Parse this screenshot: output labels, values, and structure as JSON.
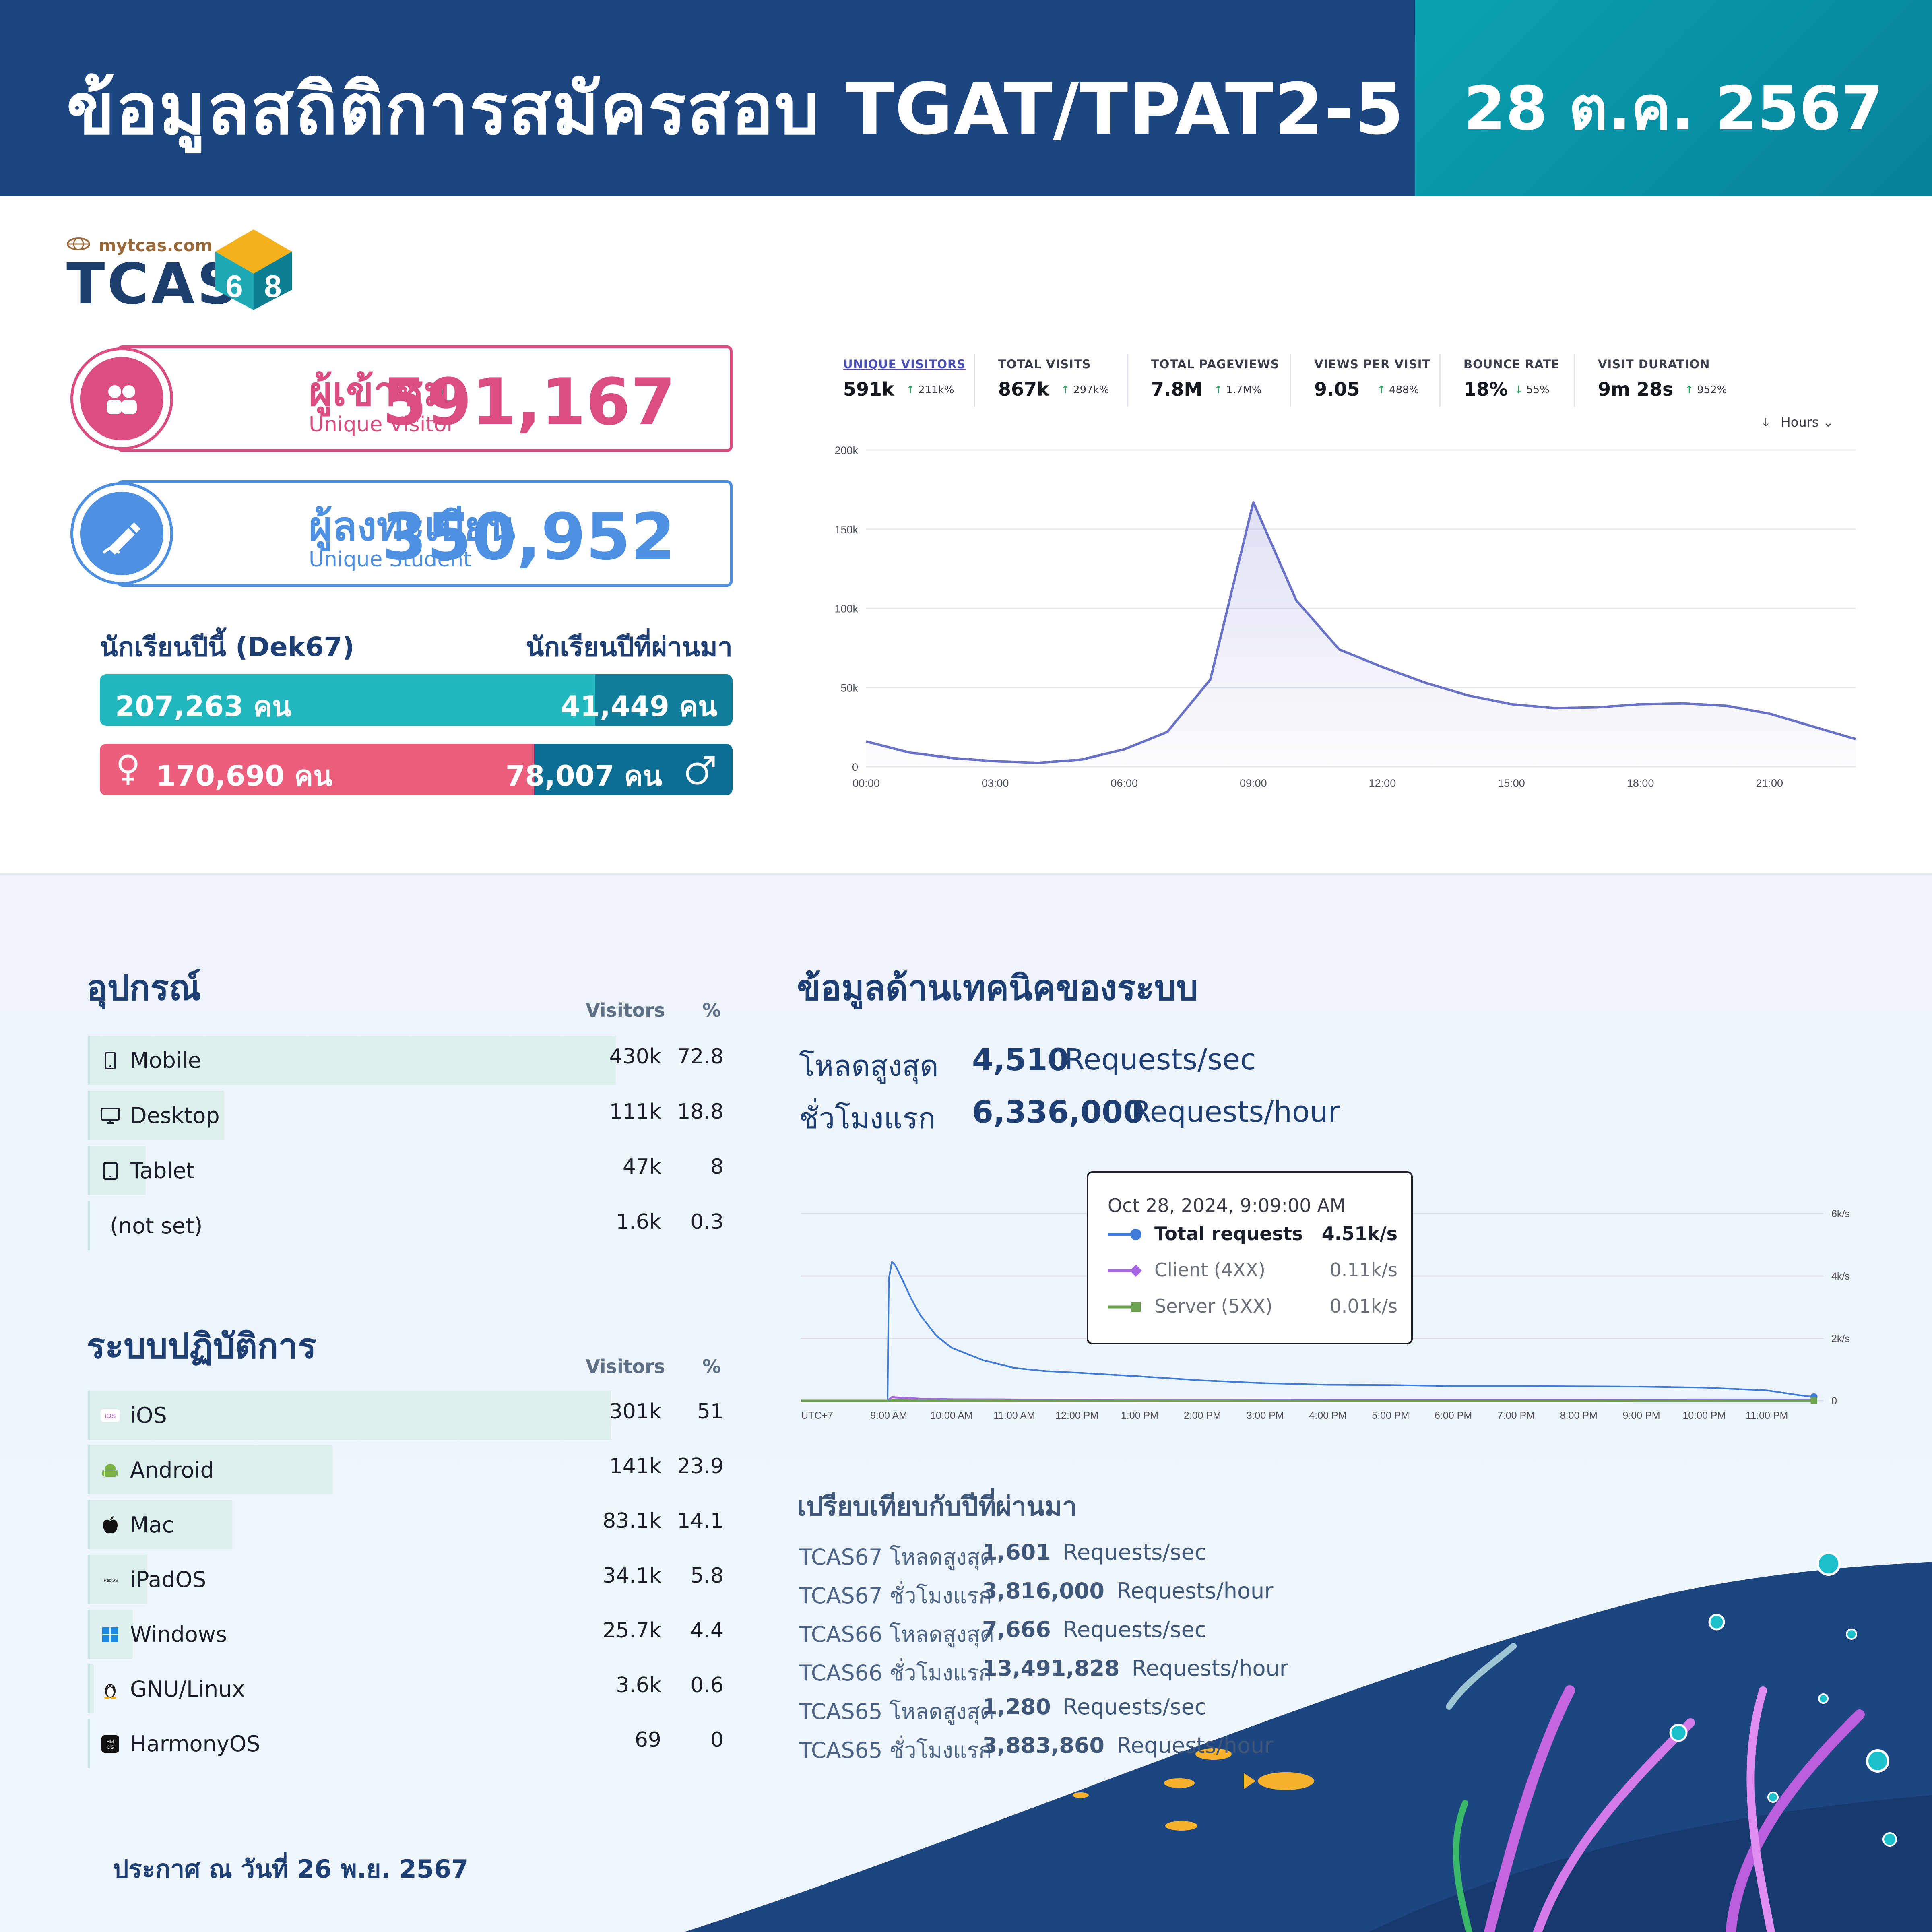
{
  "header": {
    "title": "ข้อมูลสถิติการสมัครสอบ TGAT/TPAT2-5",
    "date": "28 ต.ค. 2567"
  },
  "logo": {
    "site": "mytcas.com",
    "word": "TCAS",
    "badge_left": "6",
    "badge_right": "8"
  },
  "stats": {
    "visitors": {
      "label_th": "ผู้เข้าชม",
      "label_en": "Unique Visitor",
      "value": "591,167",
      "color": "#d94d80"
    },
    "students": {
      "label_th": "ผู้ลงทะเบียน",
      "label_en": "Unique Student",
      "value": "350,952",
      "color": "#4d8fe0"
    }
  },
  "students_split": {
    "heading_left": "นักเรียนปีนี้ (Dek67)",
    "heading_right": "นักเรียนปีที่ผ่านมา",
    "current": "207,263 คน",
    "past": "41,449 คน",
    "current_count": 207263,
    "past_count": 41449,
    "female": "170,690 คน",
    "male": "78,007 คน",
    "female_count": 170690,
    "male_count": 78007,
    "colors": {
      "current": "#22b7bd",
      "past": "#0f7f9c",
      "female": "#ec5f7c",
      "male": "#0d6e94"
    }
  },
  "analytics": {
    "metrics": [
      {
        "label": "UNIQUE VISITORS",
        "value": "591k",
        "change": "211k%",
        "dir": "up",
        "active": true
      },
      {
        "label": "TOTAL VISITS",
        "value": "867k",
        "change": "297k%",
        "dir": "up",
        "active": false
      },
      {
        "label": "TOTAL PAGEVIEWS",
        "value": "7.8M",
        "change": "1.7M%",
        "dir": "up",
        "active": false
      },
      {
        "label": "VIEWS PER VISIT",
        "value": "9.05",
        "change": "488%",
        "dir": "up",
        "active": false
      },
      {
        "label": "BOUNCE RATE",
        "value": "18%",
        "change": "55%",
        "dir": "down",
        "active": false
      },
      {
        "label": "VISIT DURATION",
        "value": "9m 28s",
        "change": "952%",
        "dir": "up",
        "active": false
      }
    ],
    "interval_label": "Hours"
  },
  "chart_data": [
    {
      "type": "area",
      "x": [
        "00:00",
        "01:00",
        "02:00",
        "03:00",
        "04:00",
        "05:00",
        "06:00",
        "07:00",
        "08:00",
        "09:00",
        "10:00",
        "11:00",
        "12:00",
        "13:00",
        "14:00",
        "15:00",
        "16:00",
        "17:00",
        "18:00",
        "19:00",
        "20:00",
        "21:00",
        "22:00",
        "23:00"
      ],
      "values": [
        16000,
        9000,
        5500,
        3500,
        2500,
        4500,
        11000,
        22000,
        55000,
        167000,
        105000,
        74000,
        63000,
        53000,
        45000,
        39500,
        37000,
        37500,
        39500,
        40000,
        38500,
        33500,
        25500,
        17500
      ],
      "xticks": [
        "00:00",
        "03:00",
        "06:00",
        "09:00",
        "12:00",
        "15:00",
        "18:00",
        "21:00"
      ],
      "yticks": [
        "0",
        "50k",
        "100k",
        "150k",
        "200k"
      ],
      "ylim": [
        0,
        200000
      ],
      "grid": true,
      "color": "#6a72c8"
    },
    {
      "type": "line",
      "xticks": [
        "UTC+7",
        "9:00 AM",
        "10:00 AM",
        "11:00 AM",
        "12:00 PM",
        "1:00 PM",
        "2:00 PM",
        "3:00 PM",
        "4:00 PM",
        "5:00 PM",
        "6:00 PM",
        "7:00 PM",
        "8:00 PM",
        "9:00 PM",
        "10:00 PM",
        "11:00 PM"
      ],
      "yticks": [
        "0",
        "2k/s",
        "4k/s",
        "6k/s"
      ],
      "ylim": [
        0,
        6000
      ],
      "grid": true,
      "series": [
        {
          "name": "Total requests",
          "color": "#3f7bd9",
          "x": [
            8.98,
            9.0,
            9.05,
            9.1,
            9.2,
            9.35,
            9.5,
            9.75,
            10.0,
            10.5,
            11.0,
            11.5,
            12.0,
            13.0,
            14.0,
            15.0,
            16.0,
            17.0,
            18.0,
            19.0,
            20.0,
            21.0,
            22.0,
            23.0,
            23.5,
            23.75
          ],
          "values": [
            0,
            3900,
            4450,
            4350,
            3950,
            3300,
            2750,
            2100,
            1700,
            1300,
            1050,
            950,
            900,
            780,
            650,
            560,
            510,
            500,
            470,
            470,
            460,
            450,
            420,
            330,
            180,
            120
          ]
        },
        {
          "name": "Client (4XX)",
          "color": "#a666e3",
          "x": [
            8.98,
            9.05,
            9.5,
            10.0,
            12.0,
            16.0,
            20.0,
            23.75
          ],
          "values": [
            0,
            110,
            60,
            40,
            30,
            25,
            25,
            20
          ]
        },
        {
          "name": "Server (5XX)",
          "color": "#6aa24f",
          "x": [
            8.98,
            9.05,
            9.5,
            23.75
          ],
          "values": [
            0,
            10,
            8,
            5
          ]
        }
      ]
    }
  ],
  "devices": {
    "title": "อุปกรณ์",
    "col_visitors": "Visitors",
    "col_pct": "%",
    "rows": [
      {
        "icon": "phone-icon",
        "label": "Mobile",
        "visitors": "430k",
        "pct": "72.8",
        "share": 72.8
      },
      {
        "icon": "monitor-icon",
        "label": "Desktop",
        "visitors": "111k",
        "pct": "18.8",
        "share": 18.8
      },
      {
        "icon": "tablet-icon",
        "label": "Tablet",
        "visitors": "47k",
        "pct": "8",
        "share": 8
      },
      {
        "icon": "",
        "label": "(not set)",
        "visitors": "1.6k",
        "pct": "0.3",
        "share": 0.3
      }
    ]
  },
  "os": {
    "title": "ระบบปฏิบัติการ",
    "col_visitors": "Visitors",
    "col_pct": "%",
    "rows": [
      {
        "icon": "ios-icon",
        "label": "iOS",
        "visitors": "301k",
        "pct": "51",
        "share": 51
      },
      {
        "icon": "android-icon",
        "label": "Android",
        "visitors": "141k",
        "pct": "23.9",
        "share": 23.9
      },
      {
        "icon": "apple-icon",
        "label": "Mac",
        "visitors": "83.1k",
        "pct": "14.1",
        "share": 14.1
      },
      {
        "icon": "ipados-icon",
        "label": "iPadOS",
        "visitors": "34.1k",
        "pct": "5.8",
        "share": 5.8
      },
      {
        "icon": "windows-icon",
        "label": "Windows",
        "visitors": "25.7k",
        "pct": "4.4",
        "share": 4.4
      },
      {
        "icon": "linux-icon",
        "label": "GNU/Linux",
        "visitors": "3.6k",
        "pct": "0.6",
        "share": 0.6
      },
      {
        "icon": "harmonyos-icon",
        "label": "HarmonyOS",
        "visitors": "69",
        "pct": "0",
        "share": 0
      }
    ]
  },
  "tech": {
    "title": "ข้อมูลด้านเทคนิคของระบบ",
    "peak_label": "โหลดสูงสุด",
    "peak_value": "4,510",
    "peak_unit": "Requests/sec",
    "first_hour_label": "ชั่วโมงแรก",
    "first_hour_value": "6,336,000",
    "first_hour_unit": "Requests/hour",
    "tooltip": {
      "title": "Oct 28, 2024, 9:09:00 AM",
      "rows": [
        {
          "name": "Total requests",
          "value": "4.51k/s",
          "color": "#3f7bd9",
          "shape": "circle",
          "bold": true
        },
        {
          "name": "Client (4XX)",
          "value": "0.11k/s",
          "color": "#a666e3",
          "shape": "diamond",
          "bold": false
        },
        {
          "name": "Server (5XX)",
          "value": "0.01k/s",
          "color": "#6aa24f",
          "shape": "square",
          "bold": false
        }
      ]
    }
  },
  "comparison": {
    "title": "เปรียบเทียบกับปีที่ผ่านมา",
    "rows": [
      {
        "label": "TCAS67 โหลดสูงสุด",
        "value": "1,601",
        "unit": "Requests/sec"
      },
      {
        "label": "TCAS67 ชั่วโมงแรก",
        "value": "3,816,000",
        "unit": "Requests/hour"
      },
      {
        "label": "TCAS66 โหลดสูงสุด",
        "value": "7,666",
        "unit": "Requests/sec"
      },
      {
        "label": "TCAS66 ชั่วโมงแรก",
        "value": "13,491,828",
        "unit": "Requests/hour"
      },
      {
        "label": "TCAS65 โหลดสูงสุด",
        "value": "1,280",
        "unit": "Requests/sec"
      },
      {
        "label": "TCAS65 ชั่วโมงแรก",
        "value": "3,883,860",
        "unit": "Requests/hour"
      }
    ]
  },
  "footer": {
    "note": "ประกาศ ณ วันที่ 26 พ.ย. 2567"
  }
}
